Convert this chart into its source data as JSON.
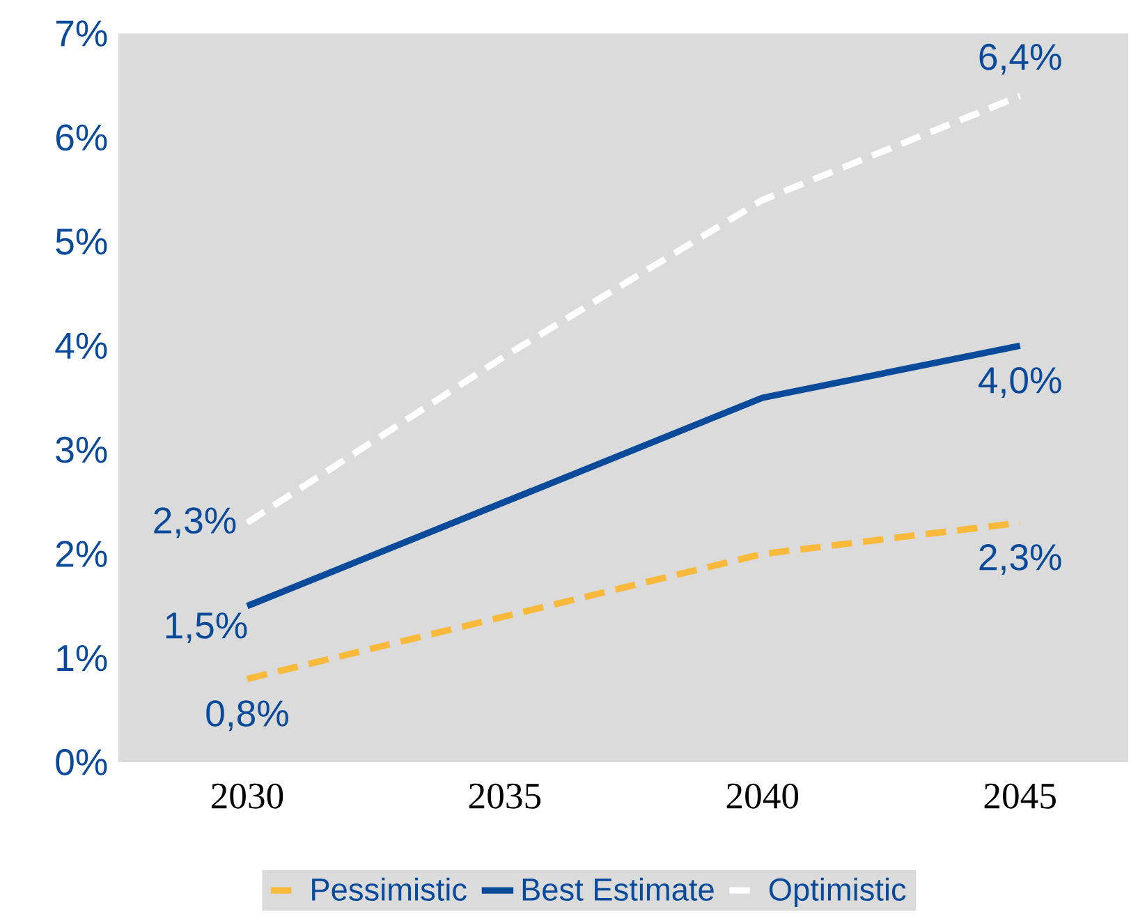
{
  "chart_data": {
    "type": "line",
    "categories": [
      "2030",
      "2035",
      "2040",
      "2045"
    ],
    "series": [
      {
        "name": "Pessimistic",
        "color": "#f9b93b",
        "line_style": "dashed",
        "values": [
          0.8,
          1.4,
          2.0,
          2.3
        ],
        "value_labels": [
          "0,8%",
          null,
          null,
          "2,3%"
        ]
      },
      {
        "name": "Best Estimate",
        "color": "#0a4a9a",
        "line_style": "solid",
        "values": [
          1.5,
          2.5,
          3.5,
          4.0
        ],
        "value_labels": [
          "1,5%",
          null,
          null,
          "4,0%"
        ]
      },
      {
        "name": "Optimistic",
        "color": "#ffffff",
        "line_style": "dashed",
        "values": [
          2.3,
          3.9,
          5.4,
          6.4
        ],
        "value_labels": [
          "2,3%",
          null,
          null,
          "6,4%"
        ]
      }
    ],
    "ylim": [
      0,
      7
    ],
    "yticks": [
      {
        "value": 0,
        "label": "0%"
      },
      {
        "value": 1,
        "label": "1%"
      },
      {
        "value": 2,
        "label": "2%"
      },
      {
        "value": 3,
        "label": "3%"
      },
      {
        "value": 4,
        "label": "4%"
      },
      {
        "value": 5,
        "label": "5%"
      },
      {
        "value": 6,
        "label": "6%"
      },
      {
        "value": 7,
        "label": "7%"
      }
    ],
    "grid": false,
    "legend": "bottom",
    "marker": "none"
  }
}
